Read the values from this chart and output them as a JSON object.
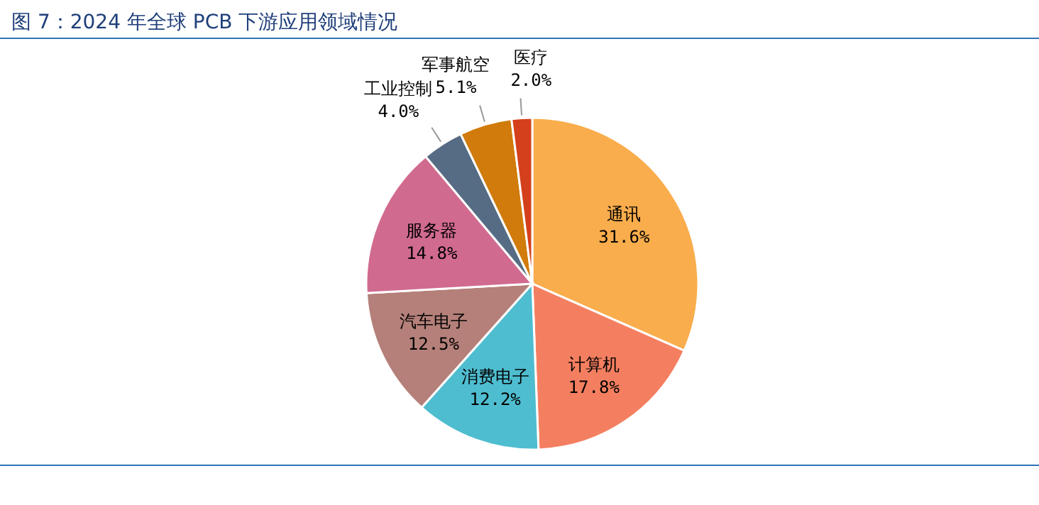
{
  "chart_data": {
    "type": "pie",
    "title": "图 7：2024 年全球 PCB 下游应用领域情况",
    "categories": [
      "通讯",
      "计算机",
      "消费电子",
      "汽车电子",
      "服务器",
      "工业控制",
      "军事航空",
      "医疗"
    ],
    "values": [
      31.6,
      17.8,
      12.2,
      12.5,
      14.8,
      4.0,
      5.1,
      2.0
    ],
    "colors": [
      "#f9ad4c",
      "#f47f60",
      "#4fbdd0",
      "#b5807a",
      "#d16a8f",
      "#566c84",
      "#d07b0c",
      "#d4401c"
    ],
    "value_labels": [
      "31.6%",
      "17.8%",
      "12.2%",
      "12.5%",
      "14.8%",
      "4.0%",
      "5.1%",
      "2.0%"
    ]
  }
}
